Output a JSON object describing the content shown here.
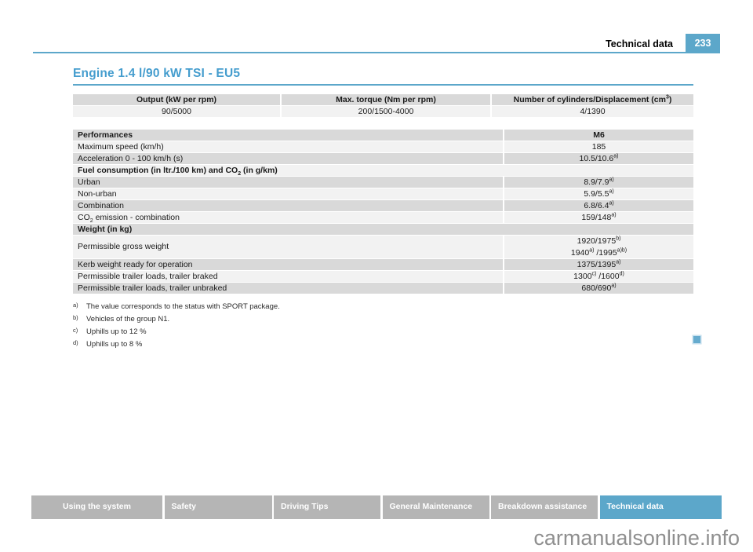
{
  "colors": {
    "accent_blue": "#459dce",
    "badge_blue": "#5ca7ca",
    "row_dark": "#d9d9d9",
    "row_light": "#f2f2f2",
    "tab_gray": "#b5b5b5",
    "watermark_gray": "#8f8f8f"
  },
  "header": {
    "section_label": "Technical data",
    "page_number": "233"
  },
  "title": "Engine 1.4 l/90 kW TSI - EU5",
  "spec_table": {
    "columns": [
      "Output (kW per rpm)",
      "Max. torque (Nm per rpm)",
      "Number of cylinders/Displacement (cm^{3})"
    ],
    "values": [
      "90/5000",
      "200/1500-4000",
      "4/1390"
    ]
  },
  "performance_table": {
    "rows": [
      {
        "type": "header",
        "shade": "dark",
        "label": "Performances",
        "value": "M6"
      },
      {
        "type": "row",
        "shade": "light",
        "label": "Maximum speed (km/h)",
        "value": "185"
      },
      {
        "type": "row",
        "shade": "dark",
        "label": "Acceleration 0 - 100 km/h (s)",
        "value": "10.5/10.6^{a)}"
      },
      {
        "type": "section",
        "shade": "light",
        "label": "Fuel consumption (in ltr./100 km) and CO_{2} (in g/km)"
      },
      {
        "type": "row",
        "shade": "dark",
        "label": "Urban",
        "value": "8.9/7.9^{a)}"
      },
      {
        "type": "row",
        "shade": "light",
        "label": "Non-urban",
        "value": "5.9/5.5^{a)}"
      },
      {
        "type": "row",
        "shade": "dark",
        "label": "Combination",
        "value": "6.8/6.4^{a)}"
      },
      {
        "type": "row",
        "shade": "light",
        "label": "CO_{2} emission - combination",
        "value": "159/148^{a)}"
      },
      {
        "type": "section",
        "shade": "dark",
        "label": "Weight (in kg)"
      },
      {
        "type": "row2",
        "shade": "light",
        "label": "Permissible gross weight",
        "value_lines": [
          "1920/1975^{b)}",
          "1940^{a)} /1995^{a)b)}"
        ]
      },
      {
        "type": "row",
        "shade": "dark",
        "label": "Kerb weight ready for operation",
        "value": "1375/1395^{a)}"
      },
      {
        "type": "row",
        "shade": "light",
        "label": "Permissible trailer loads, trailer braked",
        "value": "1300^{c)} /1600^{d)}"
      },
      {
        "type": "row",
        "shade": "dark",
        "label": "Permissible trailer loads, trailer unbraked",
        "value": "680/690^{a)}"
      }
    ]
  },
  "footnotes": [
    {
      "mark": "a)",
      "text": "The value corresponds to the status with SPORT package."
    },
    {
      "mark": "b)",
      "text": "Vehicles of the group N1."
    },
    {
      "mark": "c)",
      "text": "Uphills up to 12 %"
    },
    {
      "mark": "d)",
      "text": "Uphills up to 8 %"
    }
  ],
  "footer_tabs": [
    {
      "label": "Using the system",
      "active": false
    },
    {
      "label": "Safety",
      "active": false
    },
    {
      "label": "Driving Tips",
      "active": false
    },
    {
      "label": "General Maintenance",
      "active": false
    },
    {
      "label": "Breakdown assistance",
      "active": false
    },
    {
      "label": "Technical data",
      "active": true
    }
  ],
  "watermark": "carmanualsonline.info"
}
